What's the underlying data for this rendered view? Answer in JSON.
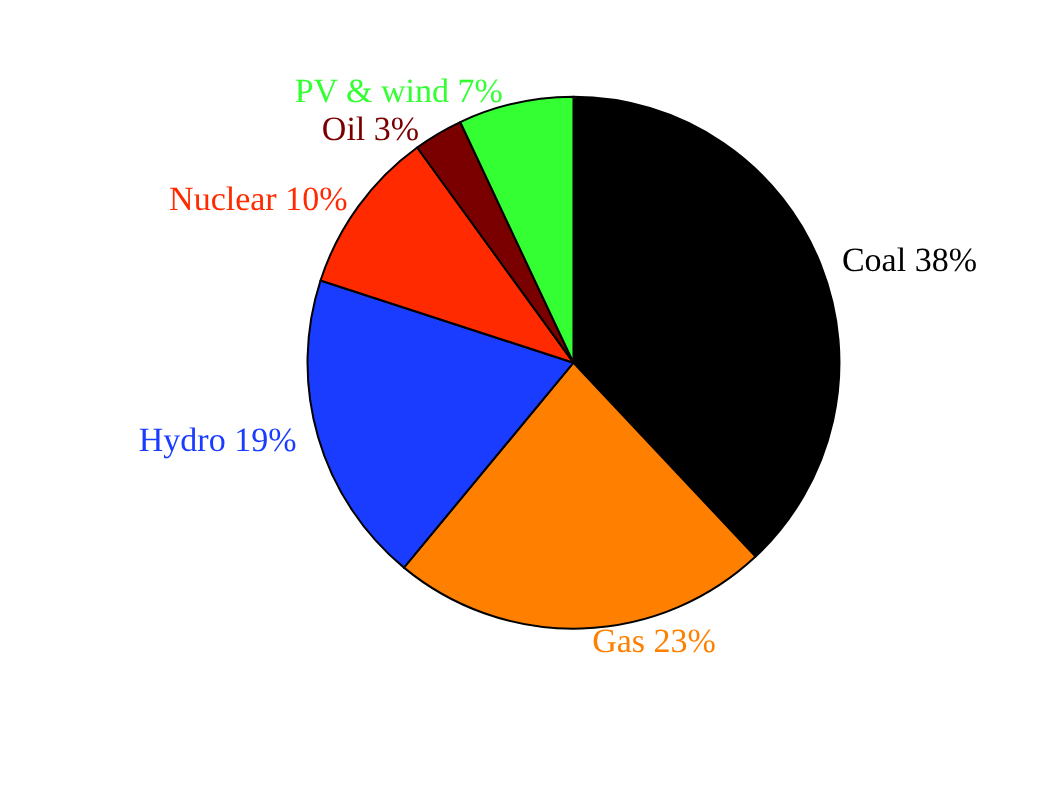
{
  "chart_data": {
    "type": "pie",
    "categories": [
      "Coal",
      "Gas",
      "Hydro",
      "Nuclear",
      "Oil",
      "PV & wind"
    ],
    "values": [
      38,
      23,
      19,
      10,
      3,
      7
    ],
    "colors": [
      "#000000",
      "#ff8000",
      "#1a3cff",
      "#ff2a00",
      "#7a0000",
      "#33ff33"
    ],
    "value_labels": [
      "38%",
      "23%",
      "19%",
      "10%",
      "3%",
      "7%"
    ],
    "legend": false
  }
}
